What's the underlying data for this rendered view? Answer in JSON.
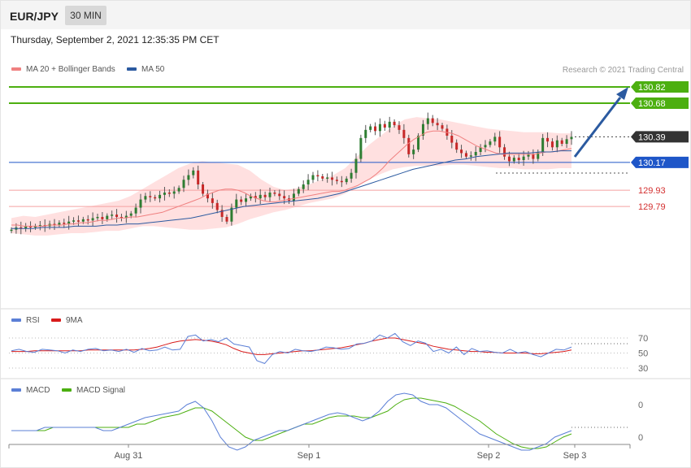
{
  "header": {
    "symbol": "EUR/JPY",
    "timeframe": "30 MIN"
  },
  "datetime": "Thursday, September 2, 2021 12:35:35 PM CET",
  "credit": "Research © 2021 Trading Central",
  "colors": {
    "up": "#2e7d32",
    "down": "#c62828",
    "ma20": "#f08080",
    "bands": "#ffd6d6",
    "ma50": "#2b5aa0",
    "resistance": "#4caf10",
    "pivot": "#1e56c8",
    "support": "#f4a0a0",
    "rsi": "#5b7fd6",
    "rsi_ma": "#d81b1b",
    "macd": "#5b7fd6",
    "macd_signal": "#4caf10",
    "arrow": "#2b5aa0"
  },
  "chart_data": [
    {
      "type": "candlestick",
      "legend": [
        {
          "name": "MA 20 + Bollinger Bands",
          "color": "#f08080"
        },
        {
          "name": "MA 50",
          "color": "#2b5aa0"
        }
      ],
      "x_labels": [
        "Aug 31",
        "Sep 1",
        "Sep 2",
        "Sep 3"
      ],
      "levels": [
        {
          "value": 130.82,
          "label": "130.82",
          "kind": "resistance"
        },
        {
          "value": 130.68,
          "label": "130.68",
          "kind": "resistance"
        },
        {
          "value": 130.39,
          "label": "130.39",
          "kind": "current"
        },
        {
          "value": 130.17,
          "label": "130.17",
          "kind": "pivot"
        },
        {
          "value": 129.93,
          "label": "129.93",
          "kind": "support"
        },
        {
          "value": 129.79,
          "label": "129.79",
          "kind": "support"
        }
      ],
      "ylim": [
        129.6,
        130.92
      ],
      "close": [
        129.59,
        129.61,
        129.6,
        129.62,
        129.61,
        129.62,
        129.63,
        129.62,
        129.64,
        129.63,
        129.65,
        129.64,
        129.66,
        129.67,
        129.66,
        129.68,
        129.67,
        129.69,
        129.7,
        129.68,
        129.71,
        129.72,
        129.7,
        129.69,
        129.71,
        129.73,
        129.78,
        129.85,
        129.88,
        129.87,
        129.86,
        129.89,
        129.91,
        129.9,
        129.92,
        129.95,
        130.02,
        130.06,
        130.1,
        129.98,
        129.9,
        129.86,
        129.82,
        129.76,
        129.7,
        129.66,
        129.78,
        129.85,
        129.83,
        129.86,
        129.88,
        129.86,
        129.89,
        129.87,
        129.91,
        129.9,
        129.88,
        129.86,
        129.84,
        129.9,
        129.94,
        129.98,
        130.02,
        130.06,
        130.05,
        130.03,
        130.04,
        130.02,
        130.01,
        130.0,
        130.03,
        130.08,
        130.2,
        130.38,
        130.45,
        130.48,
        130.44,
        130.5,
        130.47,
        130.52,
        130.49,
        130.45,
        130.38,
        130.24,
        130.28,
        130.4,
        130.5,
        130.55,
        130.51,
        130.49,
        130.46,
        130.4,
        130.34,
        130.28,
        130.25,
        130.22,
        130.23,
        130.26,
        130.3,
        130.32,
        130.35,
        130.39,
        130.3,
        130.22,
        130.18,
        130.21,
        130.19,
        130.22,
        130.24,
        130.2,
        130.26,
        130.38,
        130.35,
        130.3,
        130.36,
        130.33,
        130.37,
        130.39
      ],
      "ma20": [
        129.63,
        129.63,
        129.62,
        129.62,
        129.62,
        129.62,
        129.63,
        129.63,
        129.63,
        129.64,
        129.64,
        129.65,
        129.65,
        129.66,
        129.67,
        129.67,
        129.68,
        129.69,
        129.69,
        129.7,
        129.7,
        129.71,
        129.72,
        129.73,
        129.74,
        129.76,
        129.78,
        129.8,
        129.82,
        129.84,
        129.86,
        129.89,
        129.91,
        129.93,
        129.94,
        129.94,
        129.93,
        129.91,
        129.88,
        129.86,
        129.84,
        129.83,
        129.83,
        129.84,
        129.85,
        129.86,
        129.87,
        129.88,
        129.89,
        129.9,
        129.91,
        129.92,
        129.92,
        129.93,
        129.95,
        129.97,
        130.0,
        130.03,
        130.07,
        130.12,
        130.18,
        130.23,
        130.28,
        130.33,
        130.37,
        130.4,
        130.43,
        130.44,
        130.44,
        130.43,
        130.42,
        130.4,
        130.37,
        130.34,
        130.31,
        130.29,
        130.27,
        130.25,
        130.24,
        130.24,
        130.24,
        130.24,
        130.24,
        130.24,
        130.25,
        130.26,
        130.26,
        130.27,
        130.28,
        130.29
      ],
      "ma50": [
        129.6,
        129.6,
        129.6,
        129.61,
        129.61,
        129.61,
        129.62,
        129.62,
        129.62,
        129.63,
        129.63,
        129.64,
        129.64,
        129.65,
        129.66,
        129.67,
        129.68,
        129.69,
        129.71,
        129.73,
        129.75,
        129.77,
        129.79,
        129.8,
        129.81,
        129.82,
        129.83,
        129.84,
        129.85,
        129.86,
        129.88,
        129.9,
        129.93,
        129.96,
        129.99,
        130.02,
        130.05,
        130.08,
        130.11,
        130.13,
        130.15,
        130.17,
        130.19,
        130.2,
        130.22,
        130.23,
        130.24,
        130.25,
        130.25,
        130.25,
        130.26,
        130.26,
        130.27,
        130.27
      ],
      "band_upper": [
        129.69,
        129.71,
        129.7,
        129.72,
        129.74,
        129.76,
        129.78,
        129.8,
        129.82,
        129.84,
        129.88,
        129.94,
        130.0,
        130.06,
        130.12,
        130.16,
        130.18,
        130.17,
        130.16,
        130.15,
        130.1,
        130.02,
        129.96,
        129.93,
        129.95,
        129.98,
        130.02,
        130.06,
        130.12,
        130.22,
        130.32,
        130.4,
        130.48,
        130.54,
        130.56,
        130.55,
        130.54,
        130.52,
        130.5,
        130.48,
        130.46,
        130.45,
        130.44,
        130.43,
        130.43,
        130.43,
        130.42,
        130.42
      ],
      "band_lower": [
        129.56,
        129.55,
        129.54,
        129.54,
        129.55,
        129.56,
        129.56,
        129.57,
        129.58,
        129.58,
        129.6,
        129.62,
        129.62,
        129.61,
        129.6,
        129.59,
        129.59,
        129.6,
        129.61,
        129.64,
        129.68,
        129.71,
        129.74,
        129.76,
        129.79,
        129.82,
        129.84,
        129.86,
        129.9,
        129.96,
        130.02,
        130.07,
        130.11,
        130.13,
        130.14,
        130.14,
        130.14,
        130.15,
        130.15,
        130.14,
        130.13,
        130.12,
        130.12,
        130.11,
        130.11,
        130.11,
        130.12,
        130.12
      ]
    },
    {
      "type": "line",
      "legend": [
        {
          "name": "RSI",
          "color": "#5b7fd6"
        },
        {
          "name": "9MA",
          "color": "#d81b1b"
        }
      ],
      "y_ticks": [
        "70",
        "50",
        "30"
      ],
      "ylim": [
        25,
        80
      ],
      "rsi": [
        53,
        55,
        52,
        51,
        55,
        54,
        53,
        50,
        54,
        52,
        55,
        56,
        53,
        54,
        52,
        55,
        51,
        56,
        53,
        54,
        58,
        54,
        55,
        72,
        74,
        66,
        68,
        65,
        70,
        62,
        60,
        58,
        40,
        36,
        48,
        52,
        50,
        55,
        53,
        52,
        54,
        58,
        57,
        55,
        56,
        62,
        63,
        66,
        74,
        70,
        76,
        65,
        60,
        66,
        63,
        52,
        55,
        50,
        58,
        48,
        56,
        52,
        53,
        51,
        50,
        55,
        50,
        52,
        48,
        45,
        50,
        55,
        54,
        58
      ],
      "rsi_ma": [
        52,
        52,
        52,
        53,
        53,
        53,
        53,
        53,
        53,
        53,
        54,
        54,
        54,
        54,
        54,
        54,
        54,
        55,
        56,
        58,
        61,
        64,
        66,
        67,
        68,
        67,
        66,
        64,
        61,
        56,
        52,
        50,
        48,
        48,
        49,
        50,
        51,
        52,
        53,
        53,
        54,
        55,
        56,
        57,
        59,
        61,
        63,
        66,
        68,
        70,
        70,
        68,
        66,
        64,
        62,
        59,
        57,
        55,
        54,
        53,
        52,
        52,
        51,
        51,
        50,
        50,
        50,
        50,
        49,
        49,
        50,
        51,
        52,
        54
      ]
    },
    {
      "type": "line",
      "legend": [
        {
          "name": "MACD",
          "color": "#5b7fd6"
        },
        {
          "name": "MACD Signal",
          "color": "#4caf10"
        }
      ],
      "y_ticks": [
        "0",
        "0"
      ],
      "ylim": [
        -0.1,
        0.12
      ],
      "macd": [
        0.0,
        0.0,
        0.0,
        0.0,
        0.01,
        0.01,
        0.01,
        0.01,
        0.01,
        0.01,
        0.01,
        0.0,
        0.0,
        0.01,
        0.02,
        0.03,
        0.04,
        0.045,
        0.05,
        0.055,
        0.06,
        0.08,
        0.09,
        0.07,
        0.03,
        -0.02,
        -0.05,
        -0.06,
        -0.05,
        -0.03,
        -0.02,
        -0.01,
        0.0,
        0.0,
        0.01,
        0.02,
        0.03,
        0.04,
        0.05,
        0.055,
        0.05,
        0.04,
        0.03,
        0.04,
        0.06,
        0.09,
        0.11,
        0.115,
        0.11,
        0.09,
        0.08,
        0.08,
        0.07,
        0.05,
        0.03,
        0.01,
        -0.01,
        -0.02,
        -0.03,
        -0.04,
        -0.05,
        -0.06,
        -0.06,
        -0.05,
        -0.04,
        -0.02,
        -0.01,
        0.0
      ],
      "macd_signal": [
        0.0,
        0.0,
        0.0,
        0.0,
        0.0,
        0.01,
        0.01,
        0.01,
        0.01,
        0.01,
        0.01,
        0.01,
        0.01,
        0.01,
        0.01,
        0.02,
        0.02,
        0.03,
        0.04,
        0.045,
        0.05,
        0.06,
        0.07,
        0.07,
        0.06,
        0.04,
        0.02,
        0.0,
        -0.02,
        -0.03,
        -0.03,
        -0.02,
        -0.01,
        0.0,
        0.01,
        0.02,
        0.02,
        0.03,
        0.04,
        0.045,
        0.045,
        0.045,
        0.04,
        0.04,
        0.05,
        0.06,
        0.08,
        0.095,
        0.1,
        0.1,
        0.095,
        0.09,
        0.085,
        0.075,
        0.06,
        0.045,
        0.03,
        0.01,
        -0.01,
        -0.025,
        -0.04,
        -0.05,
        -0.055,
        -0.055,
        -0.05,
        -0.035,
        -0.02,
        -0.01
      ]
    }
  ]
}
